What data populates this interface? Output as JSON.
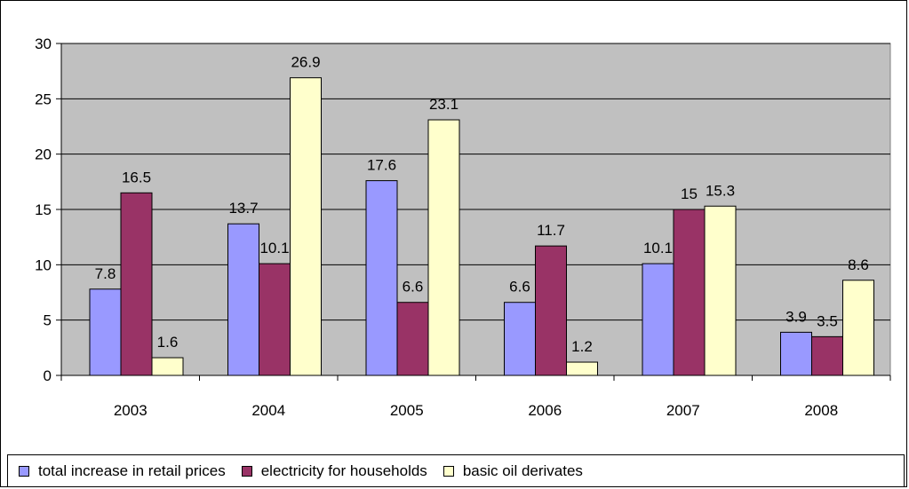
{
  "chart_data": {
    "type": "bar",
    "categories": [
      "2003",
      "2004",
      "2005",
      "2006",
      "2007",
      "2008"
    ],
    "series": [
      {
        "name": "total increase in retail prices",
        "values": [
          7.8,
          13.7,
          17.6,
          6.6,
          10.1,
          3.9
        ],
        "color": "#9999ff",
        "labels": [
          "7.8",
          "13.7",
          "17.6",
          "6.6",
          "10.1",
          "3.9"
        ]
      },
      {
        "name": "electricity for households",
        "values": [
          16.5,
          10.1,
          6.6,
          11.7,
          15,
          3.5
        ],
        "color": "#993366",
        "labels": [
          "16.5",
          "10.1",
          "6.6",
          "11.7",
          "15",
          "3.5"
        ]
      },
      {
        "name": "basic oil derivates",
        "values": [
          1.6,
          26.9,
          23.1,
          1.2,
          15.3,
          8.6
        ],
        "color": "#ffffcc",
        "labels": [
          "1.6",
          "26.9",
          "23.1",
          "1.2",
          "15.3",
          "8.6"
        ]
      }
    ],
    "y_ticks": [
      "0",
      "5",
      "10",
      "15",
      "20",
      "25",
      "30"
    ],
    "ylim": [
      0,
      30
    ],
    "grid": true,
    "plot_background": "#c0c0c0",
    "legend_position": "bottom"
  }
}
